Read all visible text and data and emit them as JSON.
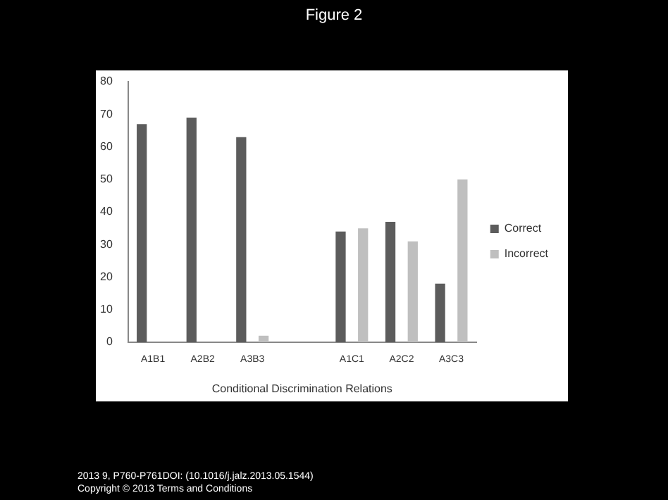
{
  "chart_data": {
    "type": "bar",
    "title": "Figure 2",
    "xlabel": "Conditional Discrimination Relations",
    "categories": [
      "A1B1",
      "A2B2",
      "A3B3",
      null,
      "A1C1",
      "A2C2",
      "A3C3"
    ],
    "series": [
      {
        "name": "Correct",
        "color": "#5c5c5c",
        "values": [
          67,
          69,
          63,
          null,
          34,
          37,
          18
        ]
      },
      {
        "name": "Incorrect",
        "color": "#bfbfbf",
        "values": [
          0,
          0,
          2,
          null,
          35,
          31,
          50
        ]
      }
    ],
    "ylim": [
      0,
      80
    ],
    "yticks": [
      0,
      10,
      20,
      30,
      40,
      50,
      60,
      70,
      80
    ],
    "grid": false,
    "legend": "right",
    "annotations": [
      "2013 9, P760-P761DOI: (10.1016/j.jalz.2013.05.1544)",
      "Copyright © 2013  Terms and Conditions"
    ]
  }
}
